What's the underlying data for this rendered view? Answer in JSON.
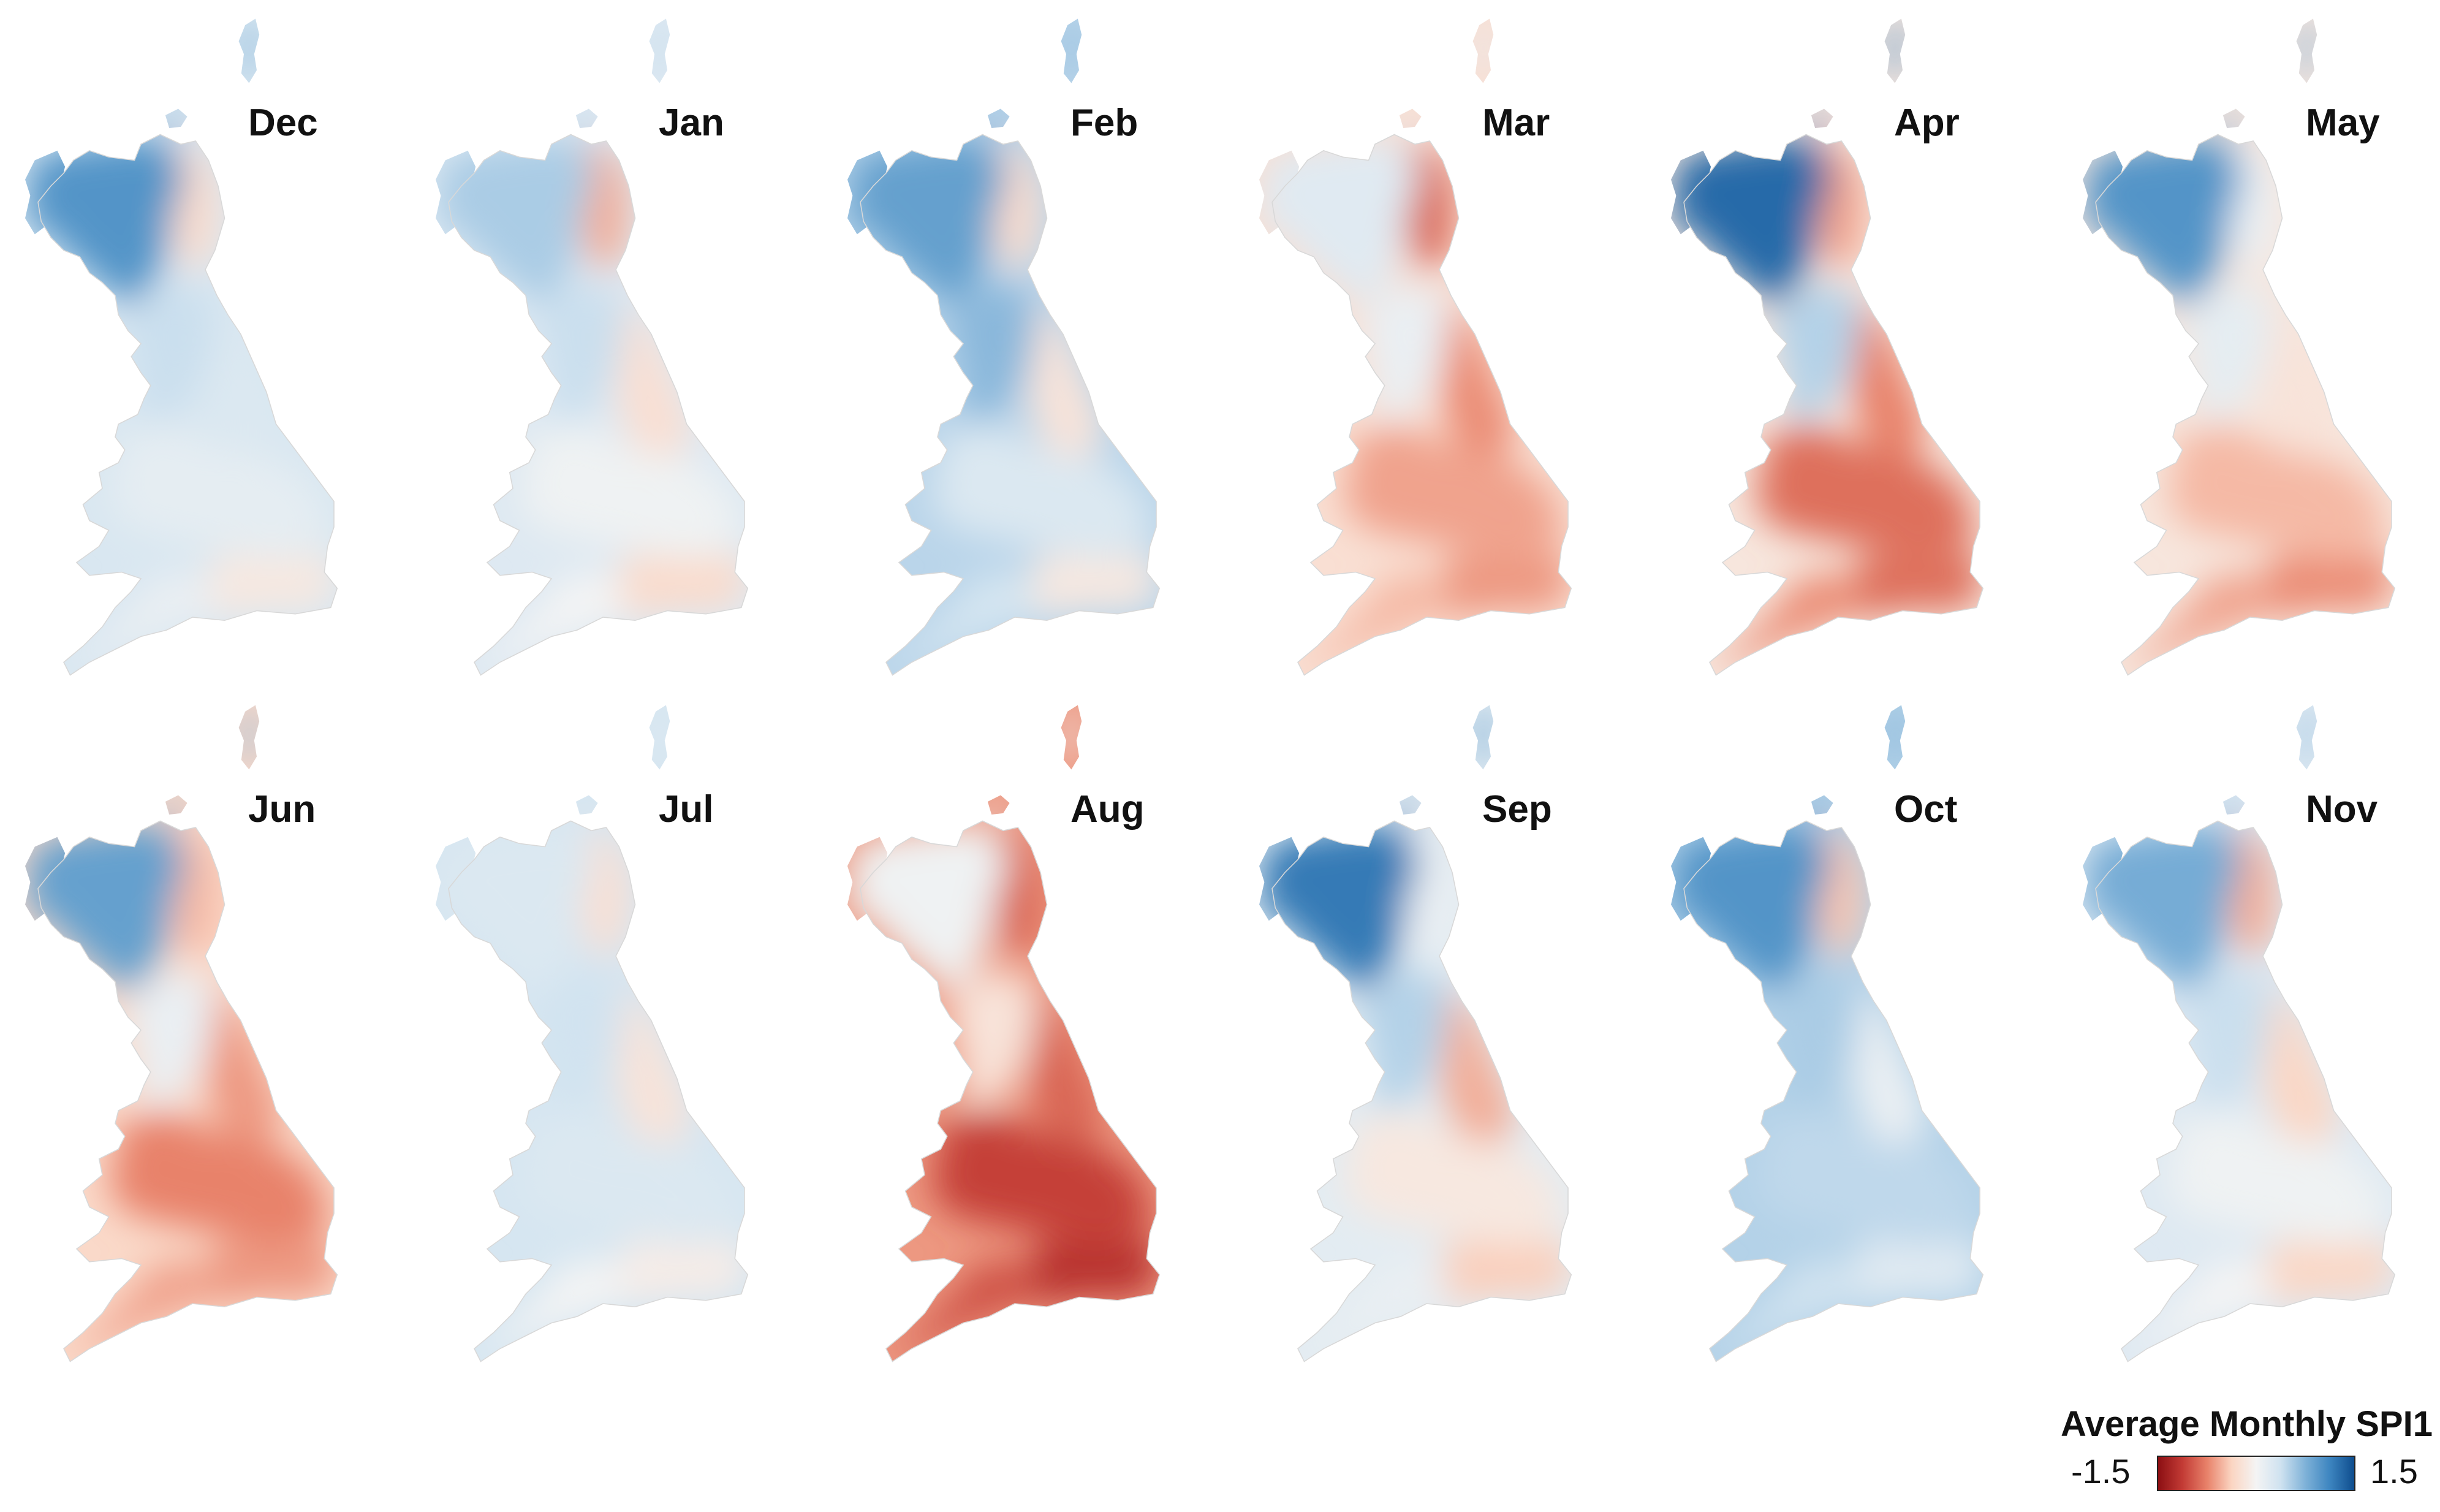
{
  "figure": {
    "panels": [
      {
        "month": "Dec",
        "north": 1.0,
        "west": 0.4,
        "east": 0.25,
        "midlands": 0.15,
        "southeast": -0.15,
        "southwest": 0.1,
        "scot_east": -0.3
      },
      {
        "month": "Jan",
        "north": 0.55,
        "west": 0.4,
        "east": -0.25,
        "midlands": 0.05,
        "southeast": -0.3,
        "southwest": 0.0,
        "scot_east": -0.55
      },
      {
        "month": "Feb",
        "north": 0.9,
        "west": 0.7,
        "east": -0.2,
        "midlands": 0.25,
        "southeast": -0.15,
        "southwest": 0.3,
        "scot_east": -0.3
      },
      {
        "month": "Mar",
        "north": 0.2,
        "west": 0.1,
        "east": -0.7,
        "midlands": -0.6,
        "southeast": -0.65,
        "southwest": -0.5,
        "scot_east": -0.9
      },
      {
        "month": "Apr",
        "north": 1.3,
        "west": 0.5,
        "east": -0.75,
        "midlands": -0.85,
        "southeast": -0.85,
        "southwest": -0.7,
        "scot_east": -0.6
      },
      {
        "month": "May",
        "north": 1.0,
        "west": 0.15,
        "east": -0.2,
        "midlands": -0.5,
        "southeast": -0.7,
        "southwest": -0.6,
        "scot_east": 0.1
      },
      {
        "month": "Jun",
        "north": 0.9,
        "west": 0.1,
        "east": -0.65,
        "midlands": -0.75,
        "southeast": -0.65,
        "southwest": -0.6,
        "scot_east": -0.5
      },
      {
        "month": "Jul",
        "north": 0.25,
        "west": 0.35,
        "east": -0.2,
        "midlands": 0.25,
        "southeast": -0.1,
        "southwest": 0.0,
        "scot_east": -0.25
      },
      {
        "month": "Aug",
        "north": 0.05,
        "west": -0.2,
        "east": -0.9,
        "midlands": -1.1,
        "southeast": -1.2,
        "southwest": -1.0,
        "scot_east": -0.9
      },
      {
        "month": "Sep",
        "north": 1.2,
        "west": 0.5,
        "east": -0.55,
        "midlands": -0.15,
        "southeast": -0.4,
        "southwest": 0.1,
        "scot_east": 0.1
      },
      {
        "month": "Oct",
        "north": 1.0,
        "west": 0.55,
        "east": 0.1,
        "midlands": 0.45,
        "southeast": 0.2,
        "southwest": 0.35,
        "scot_east": -0.45
      },
      {
        "month": "Nov",
        "north": 0.8,
        "west": 0.4,
        "east": -0.35,
        "midlands": 0.05,
        "southeast": -0.35,
        "southwest": 0.0,
        "scot_east": -0.55
      }
    ],
    "legend": {
      "title": "Average Monthly SPI1",
      "min_label": "-1.5",
      "max_label": "1.5",
      "min_value": -1.5,
      "max_value": 1.5,
      "colors": [
        "#8c0f13",
        "#c33b35",
        "#e8826a",
        "#fbd5c2",
        "#f4f4f4",
        "#cfe2f0",
        "#7fb2d8",
        "#3d85c0",
        "#0e4d8e"
      ]
    }
  }
}
